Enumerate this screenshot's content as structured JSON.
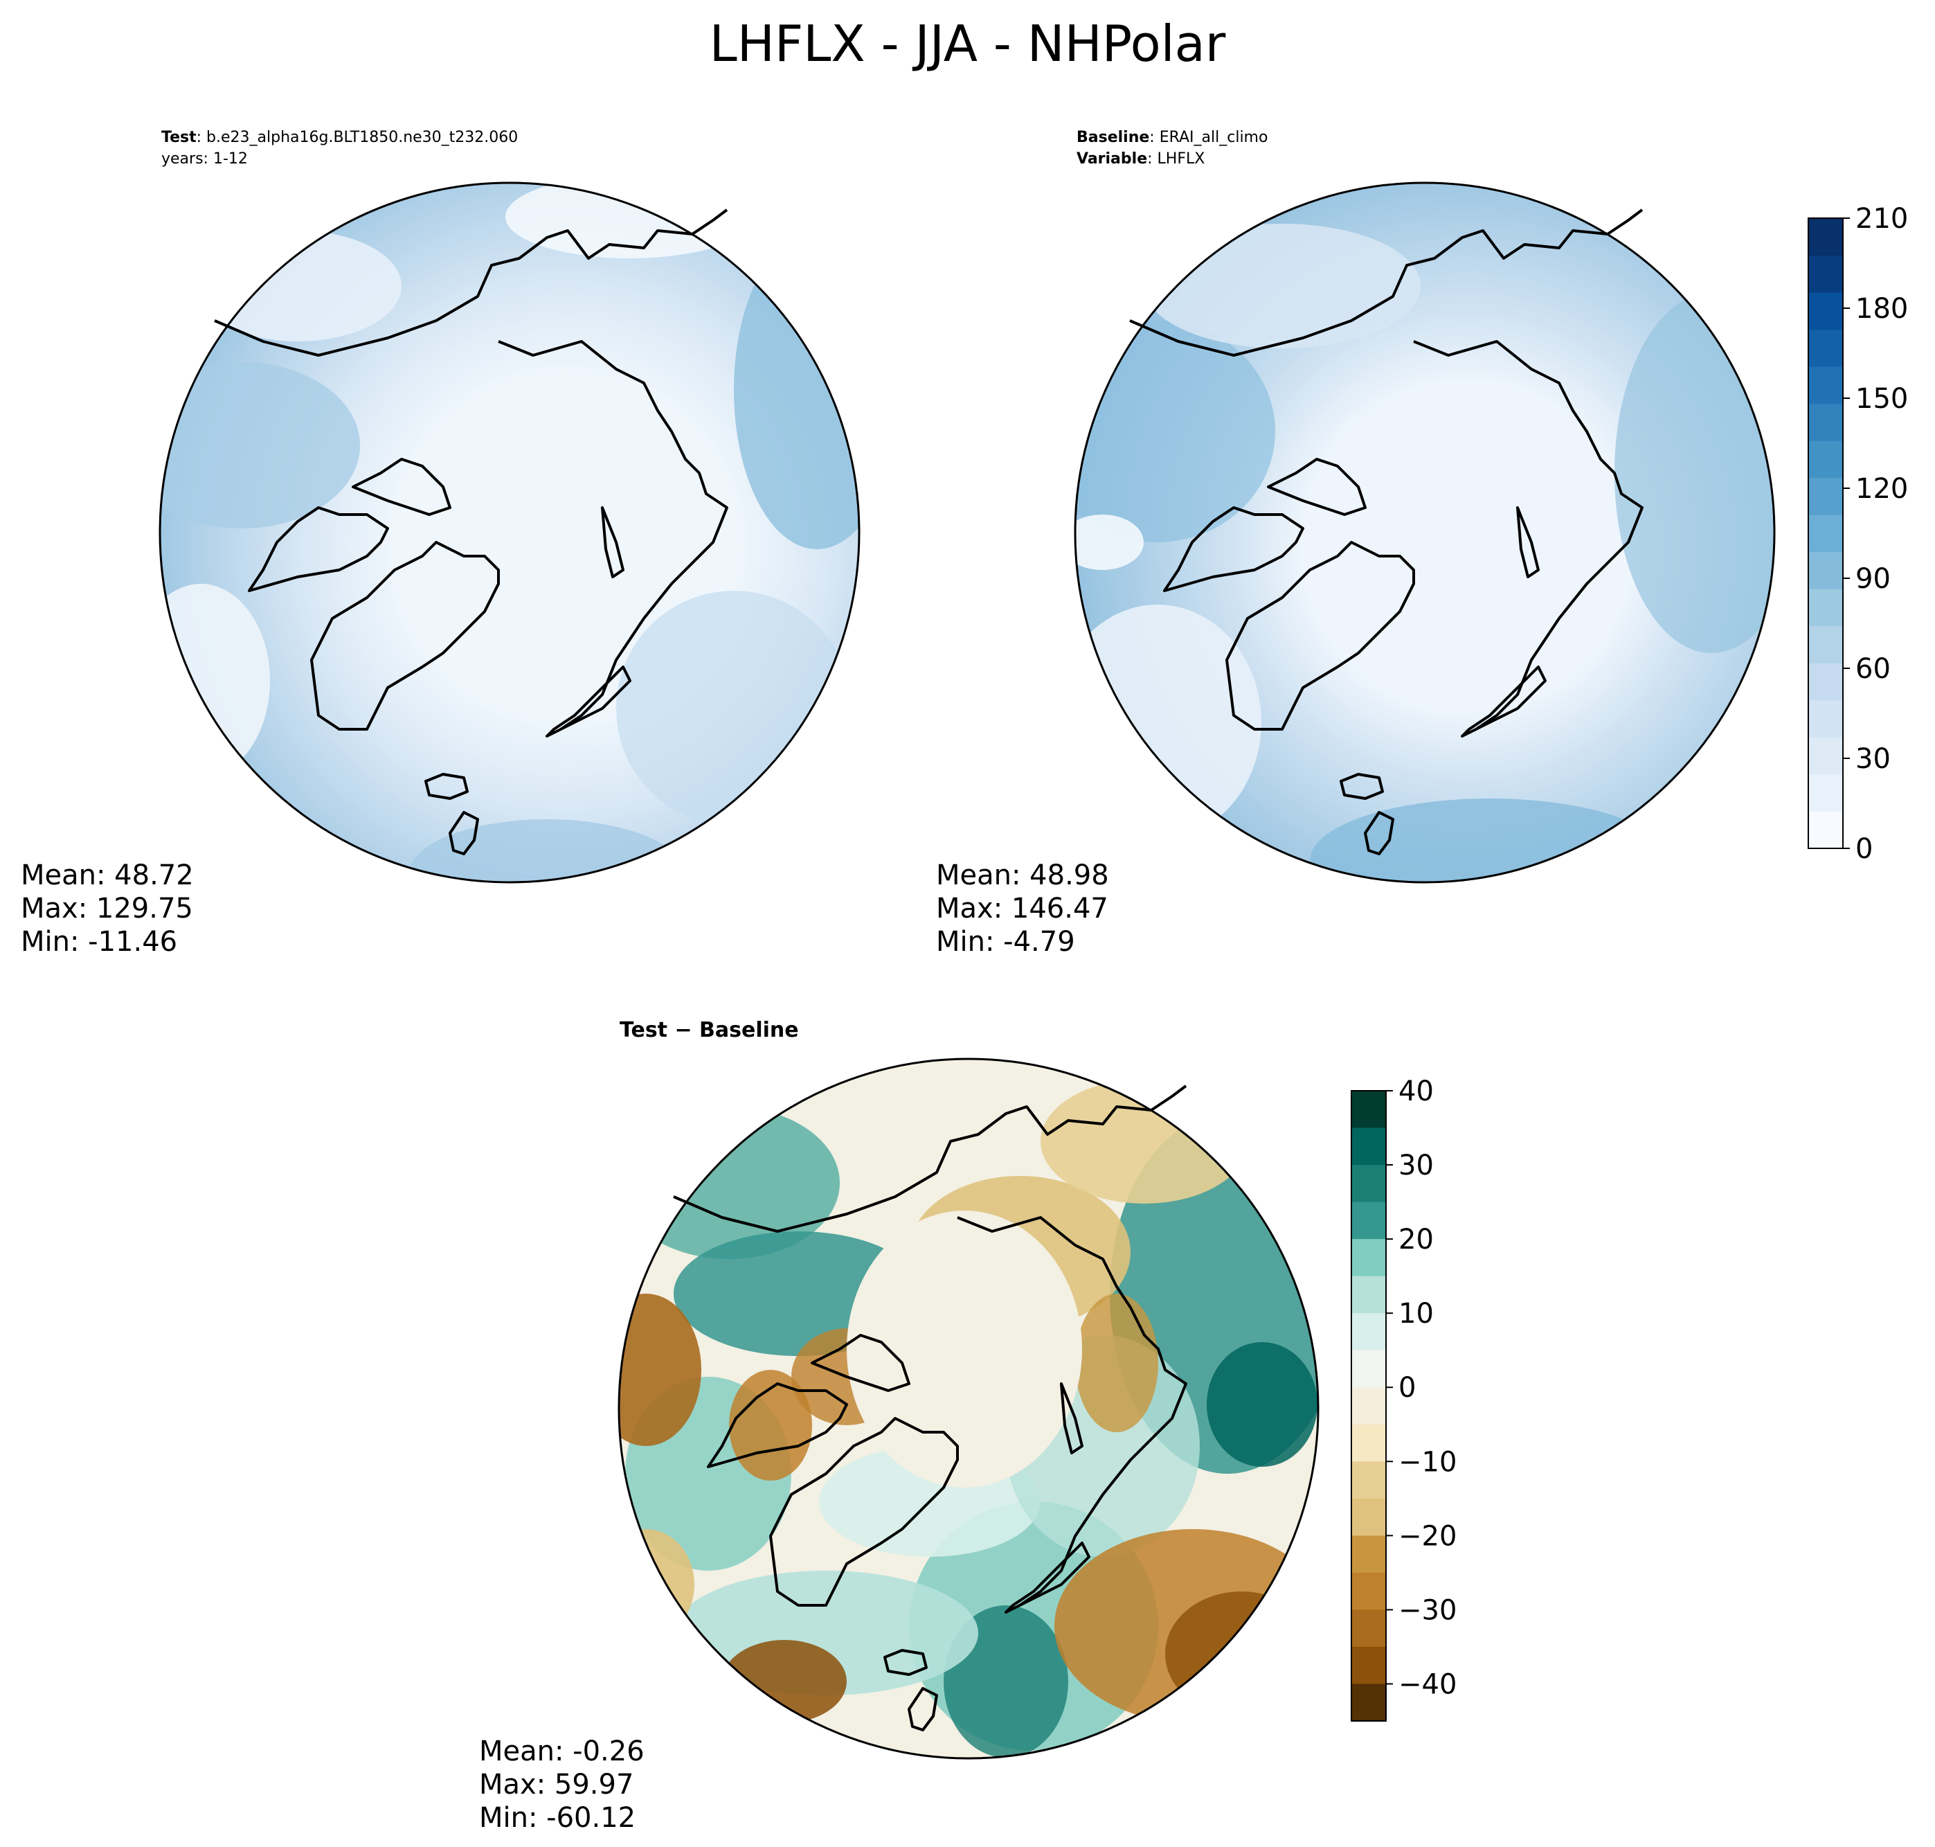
{
  "figure": {
    "title": "LHFLX - JJA - NHPolar"
  },
  "panels": [
    {
      "id": "test",
      "header_line1_bold": "Test",
      "header_line1_text": ": b.e23_alpha16g.BLT1850.ne30_t232.060",
      "header_line2": "years: 1-12",
      "stats": {
        "mean": "Mean: 48.72",
        "max": "Max: 129.75",
        "min": "Min: -11.46"
      }
    },
    {
      "id": "baseline",
      "header_line1_bold": "Baseline",
      "header_line1_text": ": ERAI_all_climo",
      "header_line2_bold": "Variable",
      "header_line2_text": ": LHFLX",
      "stats": {
        "mean": "Mean: 48.98",
        "max": "Max: 146.47",
        "min": "Min: -4.79"
      }
    },
    {
      "id": "difference",
      "title": "Test − Baseline",
      "stats": {
        "mean": "Mean: -0.26",
        "max": "Max: 59.97",
        "min": "Min: -60.12"
      }
    }
  ],
  "colorbars": {
    "main": {
      "ticks": [
        "0",
        "30",
        "60",
        "90",
        "120",
        "150",
        "180",
        "210"
      ],
      "range": [
        0,
        210
      ],
      "colors": [
        "#f7fbff",
        "#e9f2fb",
        "#deebf7",
        "#d2e3f3",
        "#c6dbef",
        "#b3d3e8",
        "#9ecae1",
        "#85bcdc",
        "#6baed6",
        "#57a0ce",
        "#4292c6",
        "#3182bd",
        "#2171b5",
        "#1361a9",
        "#08519c",
        "#083e81",
        "#08306b"
      ]
    },
    "diff": {
      "ticks": [
        "40",
        "30",
        "20",
        "10",
        "0",
        "−10",
        "−20",
        "−30",
        "−40"
      ],
      "range": [
        -45,
        40
      ],
      "colors": [
        "#003c30",
        "#01665e",
        "#1b7f76",
        "#35978f",
        "#80cdc1",
        "#b5e1da",
        "#d8efeb",
        "#f1f5f0",
        "#f6eedd",
        "#f6e8c3",
        "#e7cf94",
        "#dfc27d",
        "#c8963f",
        "#bf812d",
        "#a96c1e",
        "#8c510a",
        "#543005"
      ]
    }
  },
  "map_colors": {
    "test": {
      "ocean_outer": "#9ecae1",
      "ocean_mid": "#c6dbef",
      "inner": "#eff6fc",
      "land_edge": "#deebf7"
    },
    "baseline": {
      "ocean_outer": "#8dbfdd",
      "ocean_mid": "#b8d6ec",
      "inner": "#eef5fc",
      "land_edge": "#d3e4f3"
    },
    "difference": {
      "center": "#f3f0e4",
      "teal": "#35978f",
      "teal_light": "#b5e1da",
      "brown": "#c8963f",
      "brown_dark": "#8c510a"
    }
  }
}
